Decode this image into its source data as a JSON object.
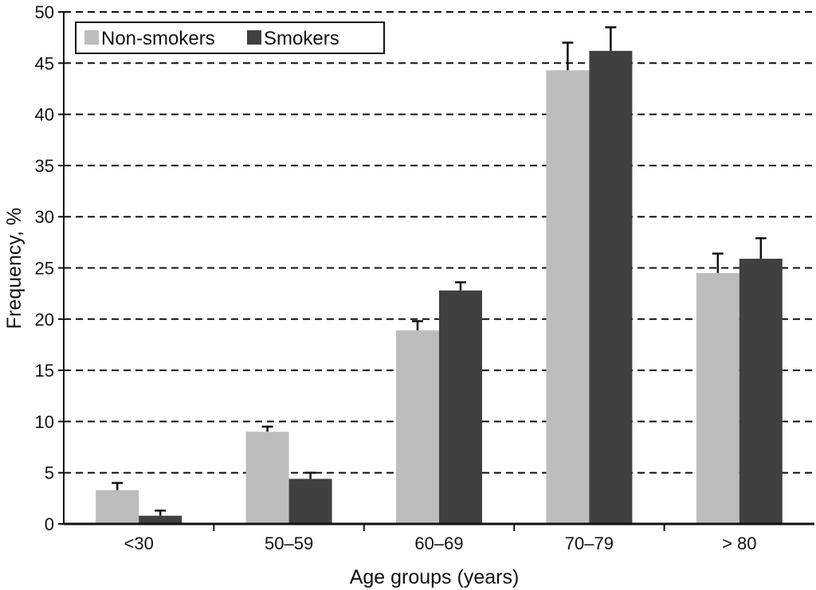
{
  "chart_data": {
    "type": "bar",
    "title": "",
    "xlabel": "Age groups (years)",
    "ylabel": "Frequency, %",
    "ylim": [
      0,
      50
    ],
    "yticks": [
      0,
      5,
      10,
      15,
      20,
      25,
      30,
      35,
      40,
      45,
      50
    ],
    "grid": "horizontal dashed",
    "legend_position": "top-left",
    "categories": [
      "<30",
      "50–59",
      "60–69",
      "70–79",
      "> 80"
    ],
    "series": [
      {
        "name": "Non-smokers",
        "color": "#bdbdbd",
        "values": [
          3.3,
          9.0,
          18.9,
          44.3,
          24.5
        ],
        "error_upper": [
          4.0,
          9.5,
          19.8,
          47.0,
          26.4
        ]
      },
      {
        "name": "Smokers",
        "color": "#404040",
        "values": [
          0.8,
          4.4,
          22.8,
          46.2,
          25.9
        ],
        "error_upper": [
          1.3,
          5.0,
          23.6,
          48.5,
          27.9
        ]
      }
    ]
  }
}
